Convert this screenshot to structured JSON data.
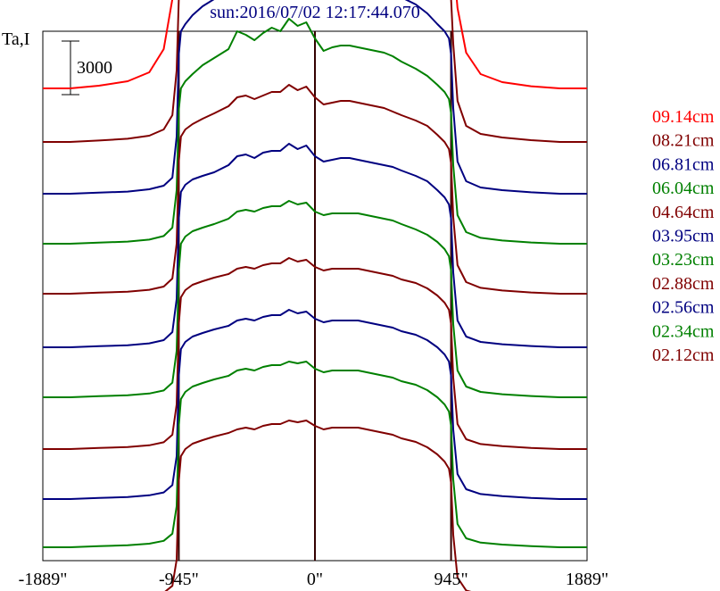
{
  "chart_data": {
    "type": "line",
    "title": "sun:2016/07/02 12:17:44.070",
    "ylabel": "Ta,I",
    "scale_bar_label": "3000",
    "scale_bar_value": 3000,
    "xlim": [
      -1889,
      1889
    ],
    "x_ticks": [
      {
        "value": -1889,
        "label": "-1889\""
      },
      {
        "value": -945,
        "label": "-945\""
      },
      {
        "value": 0,
        "label": "0\""
      },
      {
        "value": 945,
        "label": "945\""
      },
      {
        "value": 1889,
        "label": "1889\""
      }
    ],
    "reference_lines_x": [
      -945,
      0,
      945
    ],
    "x": [
      -1889,
      -1700,
      -1500,
      -1300,
      -1150,
      -1050,
      -990,
      -960,
      -945,
      -930,
      -900,
      -850,
      -780,
      -700,
      -600,
      -540,
      -480,
      -420,
      -360,
      -300,
      -240,
      -180,
      -120,
      -60,
      0,
      60,
      120,
      180,
      240,
      300,
      360,
      420,
      480,
      540,
      600,
      700,
      780,
      850,
      900,
      930,
      945,
      960,
      990,
      1050,
      1150,
      1300,
      1500,
      1700,
      1889
    ],
    "series": [
      {
        "name": "09.14cm",
        "color": "#ff0000",
        "baseline": 27800,
        "values": [
          0,
          0,
          150,
          400,
          900,
          2200,
          5000,
          7500,
          9000,
          9600,
          9900,
          10300,
          11200,
          11500,
          11900,
          13800,
          14300,
          13500,
          13900,
          14400,
          14900,
          15800,
          15200,
          15400,
          14300,
          12800,
          13200,
          13500,
          13700,
          13600,
          13500,
          13300,
          13000,
          12700,
          12300,
          11800,
          11200,
          10400,
          9800,
          9300,
          8700,
          7200,
          4500,
          2000,
          800,
          350,
          120,
          0,
          0
        ]
      },
      {
        "name": "08.21cm",
        "color": "#800000",
        "baseline": 24800,
        "values": [
          0,
          0,
          80,
          180,
          350,
          700,
          1500,
          4000,
          8000,
          9300,
          9800,
          10100,
          10700,
          11100,
          11800,
          13300,
          13500,
          12900,
          13700,
          14000,
          13600,
          14300,
          13700,
          13900,
          12900,
          11800,
          12200,
          12400,
          12400,
          12300,
          12200,
          12000,
          11900,
          11700,
          11300,
          10800,
          10300,
          9700,
          9300,
          8900,
          8000,
          5500,
          2300,
          900,
          450,
          250,
          100,
          0,
          0
        ]
      },
      {
        "name": "06.81cm",
        "color": "#000080",
        "baseline": 21900,
        "values": [
          0,
          0,
          60,
          120,
          250,
          450,
          900,
          3200,
          7800,
          9100,
          9500,
          10000,
          10500,
          10900,
          11500,
          12700,
          12800,
          12400,
          12900,
          13300,
          12900,
          13700,
          13100,
          13400,
          12600,
          11700,
          11900,
          12000,
          12100,
          12000,
          11900,
          11700,
          11600,
          11400,
          11000,
          10600,
          10100,
          9500,
          9100,
          8700,
          7800,
          4800,
          1800,
          700,
          350,
          200,
          80,
          0,
          0
        ]
      },
      {
        "name": "06.04cm",
        "color": "#008000",
        "baseline": 19100,
        "values": [
          0,
          0,
          60,
          120,
          230,
          430,
          900,
          3000,
          7500,
          8700,
          9100,
          9500,
          10000,
          10400,
          10900,
          11900,
          11700,
          11400,
          11800,
          12100,
          11900,
          12600,
          12200,
          12400,
          11500,
          10800,
          11000,
          11100,
          11100,
          11000,
          10900,
          10800,
          10700,
          10500,
          10200,
          9800,
          9400,
          8900,
          8500,
          8100,
          7300,
          4400,
          1600,
          650,
          330,
          180,
          70,
          0,
          0
        ]
      },
      {
        "name": "04.64cm",
        "color": "#800000",
        "baseline": 16300,
        "values": [
          0,
          0,
          60,
          110,
          220,
          400,
          850,
          2800,
          7400,
          8800,
          9200,
          9500,
          9800,
          10100,
          10500,
          11000,
          11100,
          10900,
          11100,
          11300,
          11300,
          11700,
          11400,
          11600,
          11000,
          10600,
          10700,
          10800,
          10800,
          10700,
          10600,
          10500,
          10400,
          10200,
          10000,
          9700,
          9400,
          8900,
          8500,
          8100,
          7300,
          4300,
          1600,
          650,
          330,
          180,
          70,
          0,
          0
        ]
      },
      {
        "name": "03.95cm",
        "color": "#000080",
        "baseline": 13300,
        "values": [
          0,
          0,
          60,
          110,
          220,
          400,
          850,
          2700,
          7200,
          8700,
          9100,
          9400,
          9600,
          9800,
          10200,
          10700,
          10800,
          10600,
          10900,
          11000,
          11000,
          11400,
          11100,
          11300,
          10700,
          10400,
          10500,
          10600,
          10600,
          10500,
          10400,
          10300,
          10200,
          10100,
          9900,
          9600,
          9300,
          8800,
          8400,
          8000,
          7200,
          4200,
          1500,
          600,
          300,
          170,
          70,
          0,
          0
        ]
      },
      {
        "name": "03.23cm",
        "color": "#008000",
        "baseline": 10500,
        "values": [
          0,
          0,
          60,
          110,
          210,
          380,
          820,
          2600,
          7100,
          8600,
          9000,
          9300,
          9500,
          9700,
          10000,
          10400,
          10500,
          10400,
          10600,
          10700,
          10700,
          11000,
          10800,
          10900,
          10400,
          10200,
          10300,
          10300,
          10300,
          10300,
          10200,
          10100,
          10000,
          9900,
          9700,
          9400,
          9100,
          8700,
          8300,
          7900,
          7100,
          4100,
          1500,
          600,
          300,
          170,
          70,
          0,
          0
        ]
      },
      {
        "name": "02.88cm",
        "color": "#800000",
        "baseline": 7600,
        "values": [
          0,
          0,
          60,
          110,
          210,
          380,
          800,
          2500,
          7000,
          8500,
          8900,
          9200,
          9400,
          9600,
          9800,
          10100,
          10200,
          10100,
          10300,
          10400,
          10400,
          10700,
          10500,
          10600,
          10200,
          10000,
          10100,
          10100,
          10100,
          10100,
          10000,
          9900,
          9800,
          9700,
          9500,
          9300,
          9000,
          8600,
          8200,
          7800,
          7000,
          4000,
          1400,
          550,
          280,
          160,
          60,
          0,
          0
        ]
      },
      {
        "name": "02.56cm",
        "color": "#000080",
        "baseline": 4800,
        "values": [
          0,
          0,
          60,
          110,
          210,
          370,
          780,
          2400,
          6900,
          8400,
          8800,
          9100,
          9300,
          9500,
          9700,
          10000,
          10100,
          10000,
          10200,
          10300,
          10300,
          10600,
          10400,
          10500,
          10100,
          9900,
          10000,
          10000,
          10000,
          10000,
          9900,
          9800,
          9700,
          9600,
          9400,
          9200,
          8900,
          8500,
          8100,
          7700,
          6900,
          3900,
          1400,
          550,
          280,
          160,
          60,
          0,
          0
        ]
      },
      {
        "name": "02.34cm",
        "color": "#008000",
        "baseline": 2100,
        "values": [
          0,
          0,
          60,
          110,
          200,
          360,
          760,
          2300,
          6800,
          8300,
          8700,
          9000,
          9200,
          9400,
          9600,
          9900,
          10000,
          9900,
          10100,
          10200,
          10200,
          10400,
          10300,
          10400,
          10000,
          9800,
          9900,
          9900,
          9900,
          9900,
          9800,
          9700,
          9600,
          9500,
          9300,
          9100,
          8800,
          8400,
          8000,
          7600,
          6800,
          3800,
          1300,
          500,
          260,
          150,
          60,
          0,
          0
        ]
      },
      {
        "name": "02.12cm",
        "color": "#800000",
        "baseline": -800,
        "values": [
          0,
          0,
          60,
          110,
          200,
          350,
          740,
          2200,
          6600,
          8000,
          8400,
          8700,
          8900,
          9100,
          9300,
          9500,
          9600,
          9500,
          9700,
          9800,
          9800,
          10000,
          9900,
          10000,
          9700,
          9500,
          9600,
          9600,
          9600,
          9600,
          9500,
          9400,
          9300,
          9200,
          9000,
          8800,
          8500,
          8100,
          7700,
          7300,
          6500,
          3600,
          1200,
          480,
          250,
          140,
          60,
          0,
          0
        ]
      }
    ]
  }
}
